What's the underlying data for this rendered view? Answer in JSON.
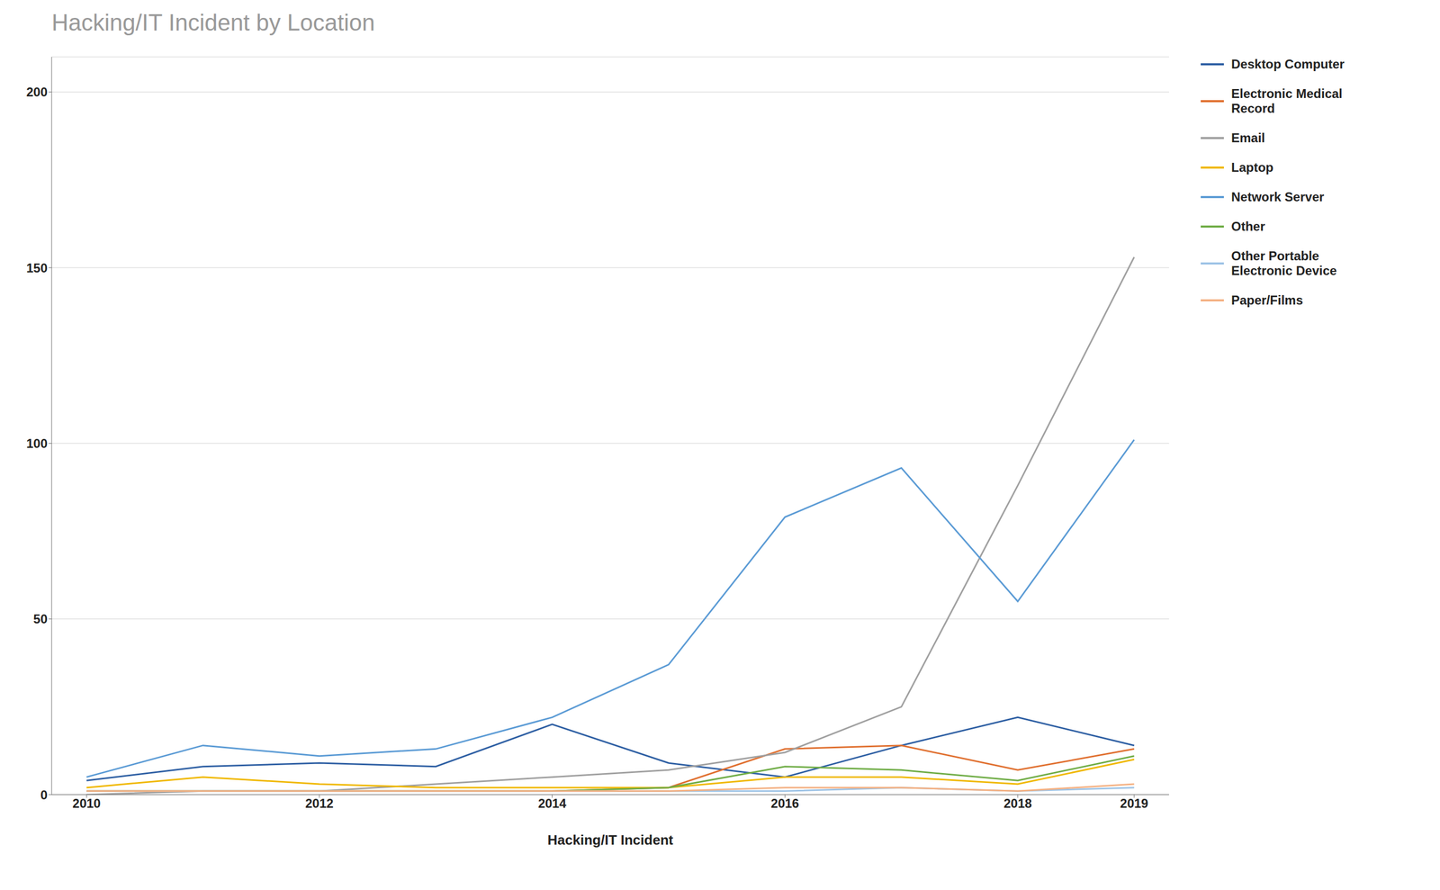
{
  "chart_data": {
    "type": "line",
    "title": "Hacking/IT Incident by Location",
    "x_label": "Hacking/IT Incident",
    "x": [
      2010,
      2011,
      2012,
      2013,
      2014,
      2015,
      2016,
      2017,
      2018,
      2019
    ],
    "series": [
      {
        "name": "Desktop Computer",
        "color": "#2e5fa3",
        "values": [
          4,
          8,
          9,
          8,
          20,
          9,
          5,
          14,
          22,
          14
        ]
      },
      {
        "name": "Electronic Medical\nRecord",
        "color": "#e07030",
        "values": [
          1,
          1,
          1,
          1,
          1,
          2,
          13,
          14,
          7,
          13
        ]
      },
      {
        "name": "Email",
        "color": "#a0a0a0",
        "values": [
          0,
          1,
          1,
          3,
          5,
          7,
          12,
          25,
          88,
          153
        ]
      },
      {
        "name": "Laptop",
        "color": "#f0b800",
        "values": [
          2,
          5,
          3,
          2,
          2,
          2,
          5,
          5,
          3,
          10
        ]
      },
      {
        "name": "Network Server",
        "color": "#5b9bd5",
        "values": [
          5,
          14,
          11,
          13,
          22,
          37,
          79,
          93,
          55,
          101
        ]
      },
      {
        "name": "Other",
        "color": "#70ad47",
        "values": [
          1,
          1,
          1,
          1,
          1,
          2,
          8,
          7,
          4,
          11
        ]
      },
      {
        "name": "Other Portable\nElectronic Device",
        "color": "#9dc3e6",
        "values": [
          1,
          1,
          1,
          1,
          1,
          1,
          1,
          2,
          1,
          2
        ]
      },
      {
        "name": "Paper/Films",
        "color": "#f4b183",
        "values": [
          1,
          1,
          1,
          1,
          1,
          1,
          2,
          2,
          1,
          3
        ]
      }
    ],
    "xlim": [
      2009.7,
      2019.3
    ],
    "xticks": [
      2010,
      2012,
      2014,
      2016,
      2018,
      2019
    ],
    "ylim": [
      0,
      210
    ],
    "yticks": [
      0,
      50,
      100,
      150,
      200
    ],
    "grid": "y",
    "legend": "right"
  }
}
